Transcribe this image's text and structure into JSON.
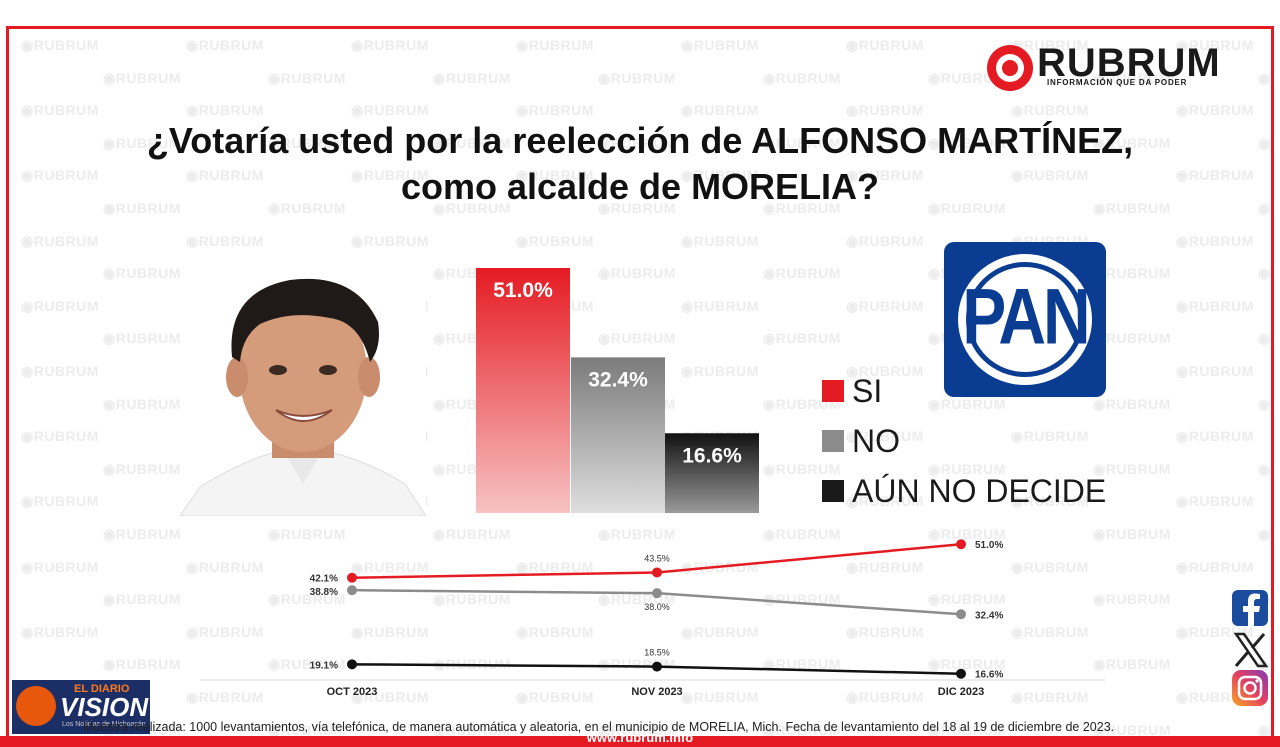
{
  "watermark_text": "RUBRUM",
  "brand": {
    "name": "RUBRUM",
    "tagline": "INFORMACIÓN QUE DA PODER",
    "accent": "#e51b23"
  },
  "title_line1": "¿Votaría usted por la reelección de ALFONSO MARTÍNEZ,",
  "title_line2": "como alcalde de MORELIA?",
  "party_logo": {
    "text": "PAN",
    "color": "#0a3d91"
  },
  "chart_data": [
    {
      "type": "bar",
      "categories": [
        "SI",
        "NO",
        "AÚN NO DECIDE"
      ],
      "values": [
        51.0,
        32.4,
        16.6
      ],
      "value_labels": [
        "51.0%",
        "32.4%",
        "16.6%"
      ],
      "colors": [
        "#e51b23",
        "#8c8c8c",
        "#1a1a1a"
      ],
      "legend_position": "right"
    },
    {
      "type": "line",
      "x": [
        "OCT 2023",
        "NOV 2023",
        "DIC 2023"
      ],
      "series": [
        {
          "name": "SI",
          "values": [
            42.1,
            43.5,
            51.0
          ],
          "labels": [
            "42.1%",
            "43.5%",
            "51.0%"
          ],
          "color": "#e51b23"
        },
        {
          "name": "NO",
          "values": [
            38.8,
            38.0,
            32.4
          ],
          "labels": [
            "38.8%",
            "38.0%",
            "32.4%"
          ],
          "color": "#8c8c8c"
        },
        {
          "name": "AÚN NO DECIDE",
          "values": [
            19.1,
            18.5,
            16.6
          ],
          "labels": [
            "19.1%",
            "18.5%",
            "16.6%"
          ],
          "color": "#111111"
        }
      ]
    }
  ],
  "legend": [
    {
      "label": "SI",
      "color": "#e51b23"
    },
    {
      "label": "NO",
      "color": "#8c8c8c"
    },
    {
      "label": "AÚN NO DECIDE",
      "color": "#1a1a1a"
    }
  ],
  "social_icons": [
    "facebook-icon",
    "x-icon",
    "instagram-icon"
  ],
  "footer_note": "Muestra realizada: 1000 levantamientos, vía telefónica, de manera automática y aleatoria, en el municipio de MORELIA, Mich. Fecha de levantamiento del 18 al 19 de diciembre de 2023.",
  "footer_url": "www.rubrum.info",
  "media_badge": {
    "line1": "EL DIARIO",
    "line2": "VISION",
    "line3": "Los Noticias de Michoacán"
  }
}
